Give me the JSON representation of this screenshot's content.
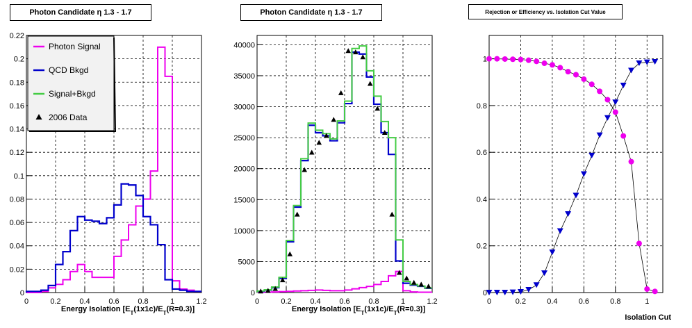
{
  "titles": {
    "left": "Photon Candidate η 1.3 - 1.7",
    "middle": "Photon Candidate η 1.3 - 1.7",
    "right": "Rejection or Efficiency vs. Isolation Cut Value"
  },
  "xlabels": {
    "left": "Energy Isolation [E_T(1x1c)/E_T(R=0.3)]",
    "middle": "Energy Isolation [E_T(1x1c)/E_T(R=0.3)]",
    "right": "Isolation Cut"
  },
  "legend": [
    {
      "label": "Photon Signal",
      "color": "#ee00ee",
      "kind": "line"
    },
    {
      "label": "QCD Bkgd",
      "color": "#0000cc",
      "kind": "line"
    },
    {
      "label": "Signal+Bkgd",
      "color": "#44cc44",
      "kind": "line"
    },
    {
      "label": "2006 Data",
      "color": "#000000",
      "kind": "triangle"
    }
  ],
  "colors": {
    "signal": "#ee00ee",
    "bkgd": "#0000cc",
    "sum": "#44cc44",
    "data": "#000000",
    "curve": "#000000"
  },
  "chart_data": [
    {
      "id": "left",
      "type": "line",
      "title": "Photon Candidate η 1.3 - 1.7",
      "xlabel": "Energy Isolation [E_T(1x1c)/E_T(R=0.3)]",
      "ylabel": "",
      "xlim": [
        0,
        1.2
      ],
      "ylim": [
        0,
        0.22
      ],
      "xticks": [
        "0",
        "0.2",
        "0.4",
        "0.6",
        "0.8",
        "1",
        "1.2"
      ],
      "yticks": [
        "0",
        "0.02",
        "0.04",
        "0.06",
        "0.08",
        "0.1",
        "0.12",
        "0.14",
        "0.16",
        "0.18",
        "0.2",
        "0.22"
      ],
      "grid": true,
      "legend_position": "top-left",
      "bin_edges": [
        0,
        0.05,
        0.1,
        0.15,
        0.2,
        0.25,
        0.3,
        0.35,
        0.4,
        0.45,
        0.5,
        0.55,
        0.6,
        0.65,
        0.7,
        0.75,
        0.8,
        0.85,
        0.9,
        0.95,
        1.0,
        1.05,
        1.1,
        1.15,
        1.2
      ],
      "series": [
        {
          "name": "Photon Signal",
          "values": [
            0.0,
            0.0,
            0.001,
            0.004,
            0.007,
            0.011,
            0.018,
            0.024,
            0.018,
            0.013,
            0.013,
            0.013,
            0.031,
            0.045,
            0.058,
            0.074,
            0.08,
            0.104,
            0.21,
            0.185,
            0.01,
            0.003,
            0.002,
            0.001
          ]
        },
        {
          "name": "QCD Bkgd",
          "values": [
            0.001,
            0.001,
            0.002,
            0.006,
            0.024,
            0.035,
            0.053,
            0.065,
            0.062,
            0.061,
            0.059,
            0.064,
            0.075,
            0.093,
            0.092,
            0.083,
            0.065,
            0.058,
            0.041,
            0.011,
            0.003,
            0.002,
            0.001,
            0.001
          ]
        }
      ]
    },
    {
      "id": "middle",
      "type": "line",
      "title": "Photon Candidate η 1.3 - 1.7",
      "xlabel": "Energy Isolation [E_T(1x1c)/E_T(R=0.3)]",
      "ylabel": "",
      "xlim": [
        0,
        1.2
      ],
      "ylim": [
        0,
        41500
      ],
      "xticks": [
        "0",
        "0.2",
        "0.4",
        "0.6",
        "0.8",
        "1",
        "1.2"
      ],
      "yticks": [
        "0",
        "5000",
        "10000",
        "15000",
        "20000",
        "25000",
        "30000",
        "35000",
        "40000"
      ],
      "grid": true,
      "bin_edges": [
        0,
        0.05,
        0.1,
        0.15,
        0.2,
        0.25,
        0.3,
        0.35,
        0.4,
        0.45,
        0.5,
        0.55,
        0.6,
        0.65,
        0.7,
        0.75,
        0.8,
        0.85,
        0.9,
        0.95,
        1.0,
        1.05,
        1.1,
        1.15,
        1.2
      ],
      "series": [
        {
          "name": "Photon Signal",
          "values": [
            50,
            50,
            100,
            150,
            200,
            250,
            300,
            350,
            400,
            350,
            300,
            300,
            400,
            600,
            800,
            1000,
            1300,
            1800,
            2700,
            3400,
            300,
            100,
            50,
            50
          ]
        },
        {
          "name": "QCD Bkgd",
          "values": [
            200,
            400,
            800,
            2300,
            8200,
            13800,
            21300,
            27000,
            25800,
            25300,
            24500,
            27400,
            30500,
            38800,
            38500,
            34800,
            30400,
            25800,
            22300,
            5100,
            1500,
            1200,
            1000,
            700
          ]
        },
        {
          "name": "Signal+Bkgd",
          "values": [
            250,
            450,
            900,
            2450,
            8400,
            14050,
            21600,
            27350,
            26200,
            25650,
            24800,
            27700,
            30900,
            39400,
            39800,
            35800,
            31700,
            27600,
            25000,
            8500,
            1800,
            1300,
            1050,
            750
          ]
        },
        {
          "name": "2006 Data",
          "x": [
            0.025,
            0.075,
            0.125,
            0.175,
            0.225,
            0.275,
            0.325,
            0.375,
            0.425,
            0.475,
            0.525,
            0.575,
            0.625,
            0.675,
            0.725,
            0.775,
            0.825,
            0.875,
            0.925,
            0.975,
            1.025,
            1.075,
            1.125,
            1.175
          ],
          "values": [
            200,
            300,
            600,
            2000,
            6200,
            12600,
            19800,
            22600,
            24200,
            25300,
            27900,
            32200,
            39000,
            38800,
            38000,
            33700,
            29700,
            25800,
            12600,
            3200,
            2300,
            1600,
            1300,
            1000
          ]
        }
      ]
    },
    {
      "id": "right",
      "type": "scatter",
      "title": "Rejection or Efficiency vs. Isolation Cut Value",
      "xlabel": "Isolation Cut",
      "ylabel": "",
      "xlim": [
        0,
        1.1
      ],
      "ylim": [
        0,
        1.1
      ],
      "xticks": [
        "0",
        "0.2",
        "0.4",
        "0.6",
        "0.8",
        "1"
      ],
      "yticks": [
        "0",
        "0.2",
        "0.4",
        "0.6",
        "0.8",
        "1"
      ],
      "grid": true,
      "x": [
        0.0,
        0.05,
        0.1,
        0.15,
        0.2,
        0.25,
        0.3,
        0.35,
        0.4,
        0.45,
        0.5,
        0.55,
        0.6,
        0.65,
        0.7,
        0.75,
        0.8,
        0.85,
        0.9,
        0.95,
        1.0,
        1.05
      ],
      "series": [
        {
          "name": "Photon Signal",
          "marker": "circle",
          "values": [
            1.0,
            1.0,
            0.999,
            0.998,
            0.997,
            0.994,
            0.989,
            0.981,
            0.974,
            0.962,
            0.945,
            0.932,
            0.913,
            0.891,
            0.861,
            0.825,
            0.772,
            0.67,
            0.56,
            0.21,
            0.015,
            0.005
          ]
        },
        {
          "name": "QCD Bkgd",
          "marker": "triangle-down",
          "values": [
            0.0,
            0.0,
            0.0,
            0.001,
            0.003,
            0.012,
            0.032,
            0.083,
            0.172,
            0.263,
            0.336,
            0.415,
            0.507,
            0.586,
            0.673,
            0.747,
            0.814,
            0.886,
            0.95,
            0.981,
            0.985,
            0.987
          ]
        }
      ]
    }
  ]
}
